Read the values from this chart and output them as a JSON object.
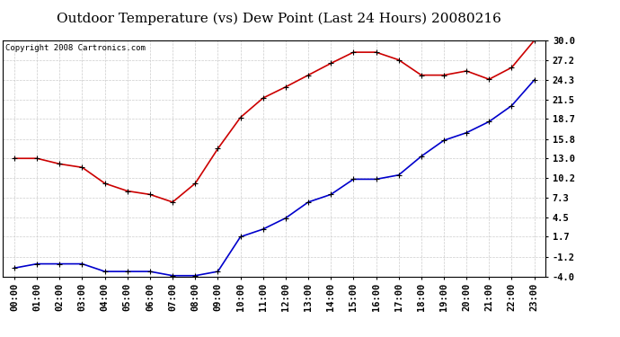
{
  "title": "Outdoor Temperature (vs) Dew Point (Last 24 Hours) 20080216",
  "copyright": "Copyright 2008 Cartronics.com",
  "x_labels": [
    "00:00",
    "01:00",
    "02:00",
    "03:00",
    "04:00",
    "05:00",
    "06:00",
    "07:00",
    "08:00",
    "09:00",
    "10:00",
    "11:00",
    "12:00",
    "13:00",
    "14:00",
    "15:00",
    "16:00",
    "17:00",
    "18:00",
    "19:00",
    "20:00",
    "21:00",
    "22:00",
    "23:00"
  ],
  "y_ticks": [
    30.0,
    27.2,
    24.3,
    21.5,
    18.7,
    15.8,
    13.0,
    10.2,
    7.3,
    4.5,
    1.7,
    -1.2,
    -4.0
  ],
  "ylim": [
    -4.0,
    30.0
  ],
  "temp_data": [
    13.0,
    13.0,
    12.2,
    11.7,
    9.4,
    8.3,
    7.8,
    6.7,
    9.4,
    14.4,
    18.9,
    21.7,
    23.3,
    25.0,
    26.7,
    28.3,
    28.3,
    27.2,
    25.0,
    25.0,
    25.6,
    24.4,
    26.1,
    30.0
  ],
  "dew_data": [
    -2.8,
    -2.2,
    -2.2,
    -2.2,
    -3.3,
    -3.3,
    -3.3,
    -3.9,
    -3.9,
    -3.3,
    1.7,
    2.8,
    4.4,
    6.7,
    7.8,
    10.0,
    10.0,
    10.6,
    13.3,
    15.6,
    16.7,
    18.3,
    20.6,
    24.3
  ],
  "temp_color": "#cc0000",
  "dew_color": "#0000cc",
  "bg_color": "#ffffff",
  "grid_color": "#cccccc",
  "title_fontsize": 11,
  "tick_fontsize": 7.5,
  "copyright_fontsize": 6.5
}
